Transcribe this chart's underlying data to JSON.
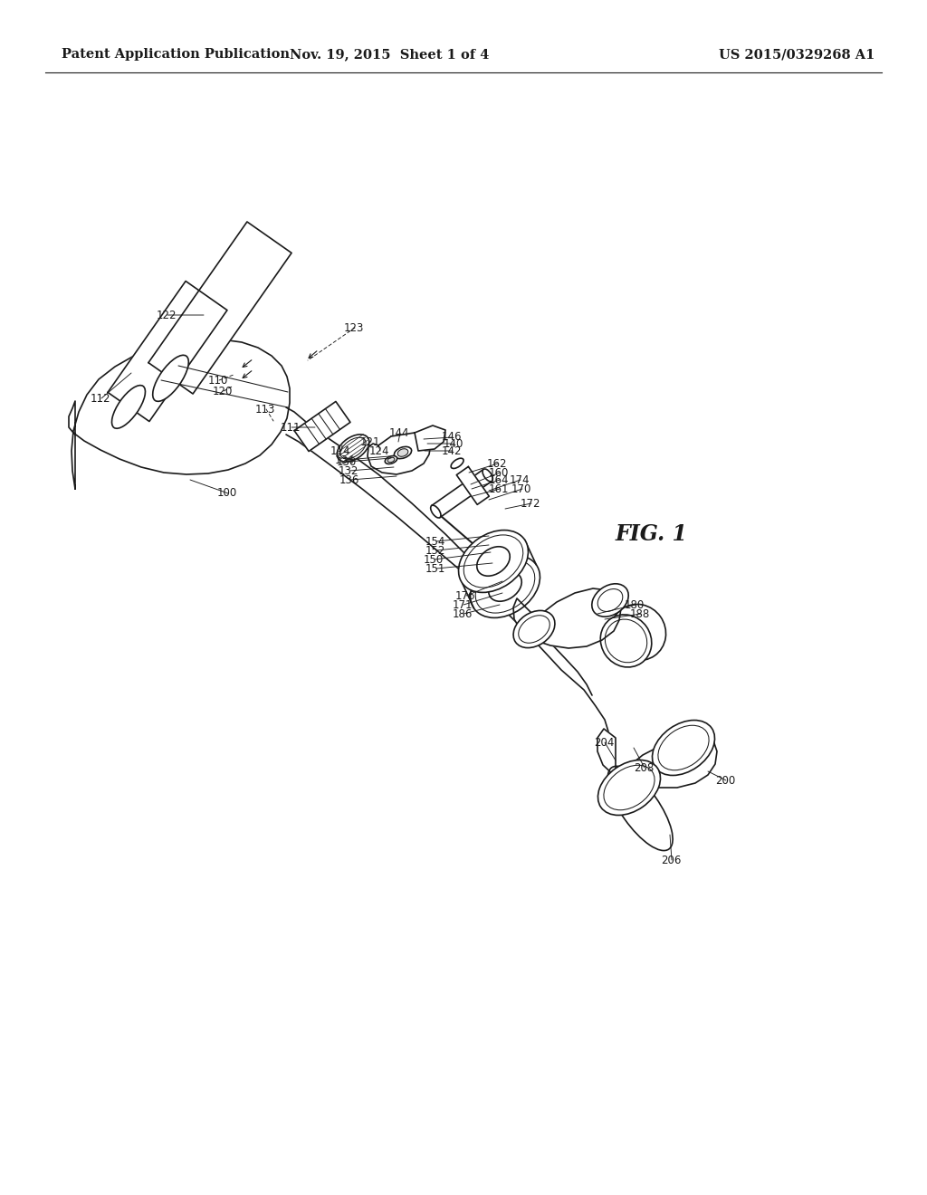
{
  "bg_color": "#ffffff",
  "header_left": "Patent Application Publication",
  "header_center": "Nov. 19, 2015  Sheet 1 of 4",
  "header_right": "US 2015/0329268 A1",
  "fig_label": "FIG. 1",
  "header_fontsize": 10.5,
  "fig_label_fontsize": 17,
  "label_fontsize": 8.5,
  "line_color": "#1a1a1a",
  "line_width": 1.2,
  "thin_line": 0.75
}
